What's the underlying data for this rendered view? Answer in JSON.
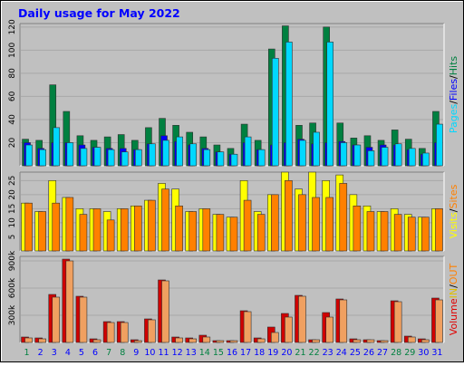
{
  "title": "Daily usage for May 2022",
  "legend_separator": "/",
  "chart_data": [
    {
      "type": "bar",
      "ylim": [
        0,
        123
      ],
      "yticks": [
        20,
        40,
        60,
        80,
        100,
        120
      ],
      "grid": true,
      "series": [
        {
          "name": "Hits",
          "color": "#008040",
          "values": [
            23,
            22,
            70,
            47,
            26,
            22,
            25,
            27,
            22,
            33,
            41,
            35,
            29,
            25,
            18,
            15,
            36,
            22,
            101,
            121,
            35,
            37,
            120,
            37,
            24,
            26,
            22,
            31,
            23,
            15,
            47
          ]
        },
        {
          "name": "Files",
          "color": "#0000ff",
          "values": [
            20,
            15,
            20,
            20,
            18,
            16,
            15,
            15,
            14,
            19,
            26,
            21,
            18,
            15,
            12,
            10,
            20,
            14,
            18,
            20,
            23,
            19,
            20,
            21,
            18,
            16,
            18,
            18,
            14,
            10,
            20
          ]
        },
        {
          "name": "Pages",
          "color": "#00d8ff",
          "values": [
            18,
            14,
            33,
            20,
            15,
            16,
            14,
            12,
            14,
            19,
            22,
            25,
            19,
            14,
            12,
            10,
            25,
            14,
            93,
            107,
            22,
            29,
            107,
            20,
            18,
            13,
            16,
            19,
            15,
            11,
            36
          ]
        }
      ]
    },
    {
      "type": "bar",
      "ylim": [
        0,
        28
      ],
      "yticks": [
        5,
        10,
        15,
        20,
        25
      ],
      "grid": true,
      "series": [
        {
          "name": "Visits",
          "color": "#ffff00",
          "values": [
            17,
            14,
            25,
            19,
            15,
            15,
            14,
            15,
            16,
            18,
            24,
            22,
            14,
            15,
            13,
            12,
            25,
            14,
            20,
            28,
            22,
            28,
            25,
            27,
            20,
            16,
            14,
            15,
            13,
            12,
            15
          ]
        },
        {
          "name": "Sites",
          "color": "#ff8000",
          "values": [
            17,
            14,
            17,
            19,
            13,
            15,
            11,
            15,
            16,
            18,
            22,
            16,
            14,
            15,
            13,
            12,
            18,
            13,
            20,
            25,
            20,
            19,
            19,
            24,
            16,
            14,
            14,
            13,
            12,
            12,
            15
          ]
        }
      ]
    },
    {
      "type": "bar",
      "ylim": [
        0,
        950000
      ],
      "label": "Volume",
      "label_color": "#e00000",
      "yticks": [
        {
          "value": 300000,
          "label": "300k"
        },
        {
          "value": 600000,
          "label": "600k"
        },
        {
          "value": 900000,
          "label": "900k"
        }
      ],
      "grid": true,
      "categories": [
        "1",
        "2",
        "3",
        "4",
        "5",
        "6",
        "7",
        "8",
        "9",
        "10",
        "11",
        "12",
        "13",
        "14",
        "15",
        "16",
        "17",
        "18",
        "19",
        "20",
        "21",
        "22",
        "23",
        "24",
        "25",
        "26",
        "27",
        "28",
        "29",
        "30",
        "31"
      ],
      "category_colors": [
        "#008040",
        "#0000ff",
        "#0000ff",
        "#0000ff",
        "#0000ff",
        "#0000ff",
        "#008040",
        "#008040",
        "#0000ff",
        "#0000ff",
        "#0000ff",
        "#0000ff",
        "#0000ff",
        "#008040",
        "#008040",
        "#0000ff",
        "#0000ff",
        "#0000ff",
        "#0000ff",
        "#0000ff",
        "#008040",
        "#008040",
        "#0000ff",
        "#0000ff",
        "#0000ff",
        "#0000ff",
        "#0000ff",
        "#008040",
        "#008040",
        "#0000ff",
        "#0000ff"
      ],
      "series": [
        {
          "name": "IN",
          "color": "#d00000",
          "legend_color": "#e0c000",
          "values": [
            60000,
            50000,
            530000,
            920000,
            510000,
            40000,
            230000,
            230000,
            30000,
            260000,
            690000,
            60000,
            50000,
            80000,
            20000,
            20000,
            350000,
            50000,
            170000,
            320000,
            520000,
            30000,
            330000,
            480000,
            40000,
            30000,
            20000,
            460000,
            70000,
            40000,
            490000
          ]
        },
        {
          "name": "OUT",
          "color": "#f0a060",
          "legend_color": "#ff8000",
          "values": [
            50000,
            40000,
            500000,
            900000,
            500000,
            30000,
            220000,
            220000,
            20000,
            250000,
            680000,
            50000,
            40000,
            60000,
            20000,
            20000,
            340000,
            40000,
            110000,
            280000,
            510000,
            30000,
            280000,
            470000,
            30000,
            30000,
            20000,
            450000,
            60000,
            30000,
            470000
          ]
        }
      ]
    }
  ]
}
